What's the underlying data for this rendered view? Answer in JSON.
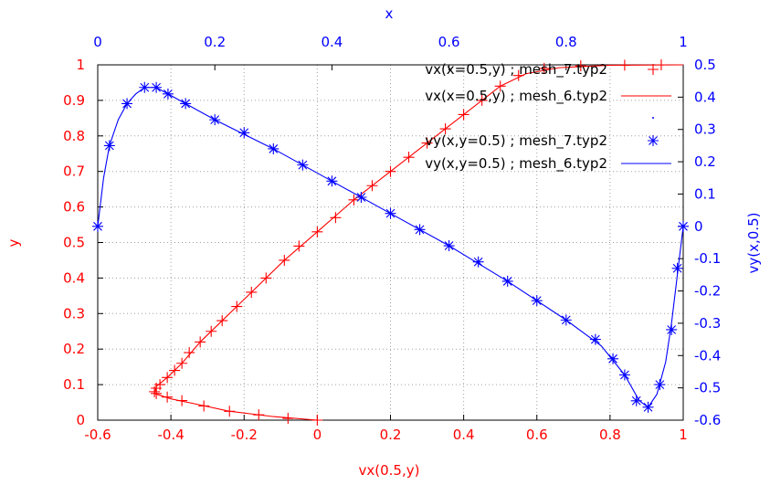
{
  "colors": {
    "red": "#ff0000",
    "blue": "#0000ff",
    "grid": "#a0a0a0",
    "axis": "#000000"
  },
  "chart_data": {
    "type": "line",
    "grid": true,
    "legend_placement": "top-right",
    "axes": {
      "x_bottom": {
        "label": "vx(0.5,y)",
        "range": [
          -0.6,
          1.0
        ],
        "ticks": [
          "-0.6",
          "-0.4",
          "-0.2",
          "0",
          "0.2",
          "0.4",
          "0.6",
          "0.8",
          "1"
        ]
      },
      "x_top": {
        "label": "x",
        "range": [
          0,
          1
        ],
        "ticks": [
          "0",
          "0.2",
          "0.4",
          "0.6",
          "0.8",
          "1"
        ]
      },
      "y_left": {
        "label": "y",
        "range": [
          0,
          1
        ],
        "ticks": [
          "0",
          "0.1",
          "0.2",
          "0.3",
          "0.4",
          "0.5",
          "0.6",
          "0.7",
          "0.8",
          "0.9",
          "1"
        ]
      },
      "y_right": {
        "label": "vy(x,0.5)",
        "range": [
          -0.6,
          0.5
        ],
        "ticks": [
          "-0.6",
          "-0.5",
          "-0.4",
          "-0.3",
          "-0.2",
          "-0.1",
          "0",
          "0.1",
          "0.2",
          "0.3",
          "0.4",
          "0.5"
        ]
      }
    },
    "legend": [
      {
        "label": "vx(x=0.5,y) ; mesh_7.typ2",
        "color": "#ff0000",
        "style": "plus"
      },
      {
        "label": "vx(x=0.5,y) ; mesh_6.typ2",
        "color": "#ff0000",
        "style": "line"
      },
      {
        "label": "",
        "color": "#0000ff",
        "style": "dot"
      },
      {
        "label": "vy(x,y=0.5) ; mesh_7.typ2",
        "color": "#0000ff",
        "style": "star"
      },
      {
        "label": "vy(x,y=0.5) ; mesh_6.typ2",
        "color": "#0000ff",
        "style": "line"
      }
    ],
    "series": [
      {
        "name": "vx(x=0.5,y) ; mesh_7.typ2",
        "axes": "x_bottom/y_left",
        "points": [
          [
            0,
            0
          ],
          [
            -0.08,
            0.005
          ],
          [
            -0.16,
            0.015
          ],
          [
            -0.24,
            0.025
          ],
          [
            -0.31,
            0.04
          ],
          [
            -0.37,
            0.055
          ],
          [
            -0.41,
            0.065
          ],
          [
            -0.44,
            0.075
          ],
          [
            -0.445,
            0.08
          ],
          [
            -0.44,
            0.09
          ],
          [
            -0.43,
            0.1
          ],
          [
            -0.41,
            0.12
          ],
          [
            -0.39,
            0.14
          ],
          [
            -0.37,
            0.16
          ],
          [
            -0.35,
            0.19
          ],
          [
            -0.32,
            0.22
          ],
          [
            -0.29,
            0.25
          ],
          [
            -0.26,
            0.28
          ],
          [
            -0.22,
            0.32
          ],
          [
            -0.18,
            0.36
          ],
          [
            -0.14,
            0.4
          ],
          [
            -0.09,
            0.45
          ],
          [
            -0.05,
            0.49
          ],
          [
            0,
            0.53
          ],
          [
            0.05,
            0.57
          ],
          [
            0.1,
            0.62
          ],
          [
            0.15,
            0.66
          ],
          [
            0.2,
            0.7
          ],
          [
            0.25,
            0.74
          ],
          [
            0.3,
            0.78
          ],
          [
            0.35,
            0.82
          ],
          [
            0.4,
            0.86
          ],
          [
            0.45,
            0.9
          ],
          [
            0.5,
            0.94
          ],
          [
            0.55,
            0.97
          ],
          [
            0.62,
            0.99
          ],
          [
            0.72,
            0.997
          ],
          [
            0.84,
            0.999
          ],
          [
            0.94,
            1.0
          ]
        ]
      },
      {
        "name": "vx(x=0.5,y) ; mesh_6.typ2",
        "axes": "x_bottom/y_left",
        "points": [
          [
            0,
            0
          ],
          [
            -0.12,
            0.01
          ],
          [
            -0.24,
            0.025
          ],
          [
            -0.33,
            0.045
          ],
          [
            -0.4,
            0.06
          ],
          [
            -0.445,
            0.075
          ],
          [
            -0.44,
            0.095
          ],
          [
            -0.41,
            0.12
          ],
          [
            -0.37,
            0.16
          ],
          [
            -0.32,
            0.22
          ],
          [
            -0.26,
            0.28
          ],
          [
            -0.18,
            0.36
          ],
          [
            -0.09,
            0.45
          ],
          [
            0,
            0.53
          ],
          [
            0.1,
            0.62
          ],
          [
            0.2,
            0.7
          ],
          [
            0.3,
            0.78
          ],
          [
            0.4,
            0.86
          ],
          [
            0.5,
            0.94
          ],
          [
            0.57,
            0.975
          ],
          [
            0.66,
            0.992
          ],
          [
            0.8,
            0.999
          ],
          [
            1.0,
            1.0
          ]
        ]
      },
      {
        "name": "vy(x,y=0.5) ; mesh_7.typ2",
        "axes": "x_top/y_right",
        "points": [
          [
            0,
            0
          ],
          [
            0.02,
            0.25
          ],
          [
            0.05,
            0.38
          ],
          [
            0.08,
            0.43
          ],
          [
            0.1,
            0.43
          ],
          [
            0.12,
            0.41
          ],
          [
            0.15,
            0.38
          ],
          [
            0.2,
            0.33
          ],
          [
            0.25,
            0.29
          ],
          [
            0.3,
            0.24
          ],
          [
            0.35,
            0.19
          ],
          [
            0.4,
            0.14
          ],
          [
            0.45,
            0.09
          ],
          [
            0.5,
            0.04
          ],
          [
            0.55,
            -0.01
          ],
          [
            0.6,
            -0.06
          ],
          [
            0.65,
            -0.11
          ],
          [
            0.7,
            -0.17
          ],
          [
            0.75,
            -0.23
          ],
          [
            0.8,
            -0.29
          ],
          [
            0.85,
            -0.35
          ],
          [
            0.88,
            -0.41
          ],
          [
            0.9,
            -0.46
          ],
          [
            0.92,
            -0.54
          ],
          [
            0.94,
            -0.56
          ],
          [
            0.96,
            -0.49
          ],
          [
            0.98,
            -0.32
          ],
          [
            0.99,
            -0.13
          ],
          [
            1.0,
            0
          ]
        ]
      },
      {
        "name": "vy(x,y=0.5) ; mesh_6.typ2",
        "axes": "x_top/y_right",
        "points": [
          [
            0,
            0
          ],
          [
            0.01,
            0.15
          ],
          [
            0.02,
            0.25
          ],
          [
            0.035,
            0.33
          ],
          [
            0.05,
            0.38
          ],
          [
            0.065,
            0.41
          ],
          [
            0.08,
            0.43
          ],
          [
            0.1,
            0.43
          ],
          [
            0.13,
            0.4
          ],
          [
            0.2,
            0.33
          ],
          [
            0.3,
            0.24
          ],
          [
            0.4,
            0.14
          ],
          [
            0.5,
            0.04
          ],
          [
            0.6,
            -0.06
          ],
          [
            0.7,
            -0.17
          ],
          [
            0.8,
            -0.29
          ],
          [
            0.86,
            -0.37
          ],
          [
            0.9,
            -0.46
          ],
          [
            0.925,
            -0.54
          ],
          [
            0.94,
            -0.56
          ],
          [
            0.955,
            -0.52
          ],
          [
            0.97,
            -0.42
          ],
          [
            0.98,
            -0.3
          ],
          [
            0.99,
            -0.15
          ],
          [
            1.0,
            0
          ]
        ]
      }
    ]
  }
}
